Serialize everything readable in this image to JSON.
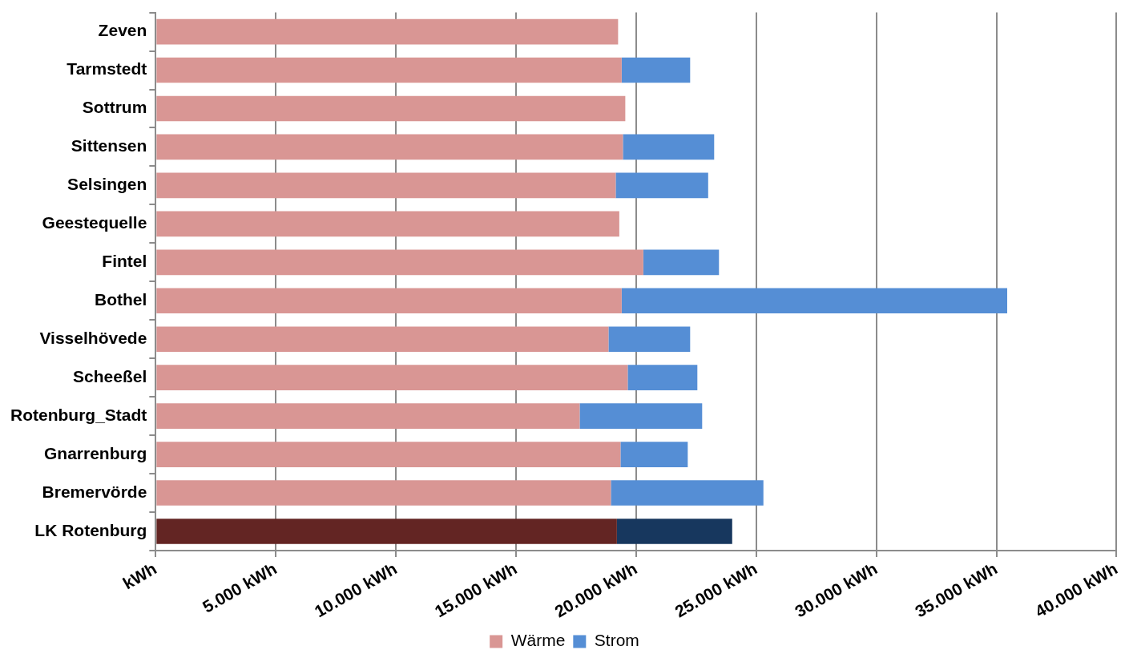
{
  "chart_data": {
    "type": "bar",
    "orientation": "horizontal",
    "stacked": true,
    "categories": [
      "Zeven",
      "Tarmstedt",
      "Sottrum",
      "Sittensen",
      "Selsingen",
      "Geestequelle",
      "Fintel",
      "Bothel",
      "Visselhövede",
      "Scheeßel",
      "Rotenburg_Stadt",
      "Gnarrenburg",
      "Bremervörde",
      "LK Rotenburg"
    ],
    "series": [
      {
        "name": "Wärme",
        "color": "#d99694",
        "colors": [
          "#d99694",
          "#d99694",
          "#d99694",
          "#d99694",
          "#d99694",
          "#d99694",
          "#d99694",
          "#d99694",
          "#d99694",
          "#d99694",
          "#d99694",
          "#d99694",
          "#d99694",
          "#632523"
        ],
        "values": [
          19250,
          19400,
          19550,
          19450,
          19150,
          19300,
          20300,
          19400,
          18850,
          19650,
          17650,
          19350,
          18950,
          19200
        ]
      },
      {
        "name": "Strom",
        "color": "#558ed5",
        "colors": [
          "#558ed5",
          "#558ed5",
          "#558ed5",
          "#558ed5",
          "#558ed5",
          "#558ed5",
          "#558ed5",
          "#558ed5",
          "#558ed5",
          "#558ed5",
          "#558ed5",
          "#558ed5",
          "#558ed5",
          "#17375e"
        ],
        "values": [
          null,
          2850,
          null,
          3800,
          3850,
          null,
          3150,
          16050,
          3400,
          2900,
          5100,
          2800,
          6350,
          4800
        ]
      }
    ],
    "xlim": [
      0,
      40000
    ],
    "xticks": [
      {
        "value": 0,
        "label": "kWh"
      },
      {
        "value": 5000,
        "label": "5.000 kWh"
      },
      {
        "value": 10000,
        "label": "10.000 kWh"
      },
      {
        "value": 15000,
        "label": "15.000 kWh"
      },
      {
        "value": 20000,
        "label": "20.000 kWh"
      },
      {
        "value": 25000,
        "label": "25.000 kWh"
      },
      {
        "value": 30000,
        "label": "30.000 kWh"
      },
      {
        "value": 35000,
        "label": "35.000 kWh"
      },
      {
        "value": 40000,
        "label": "40.000 kWh"
      }
    ],
    "grid": "x",
    "legend": "bottom"
  }
}
